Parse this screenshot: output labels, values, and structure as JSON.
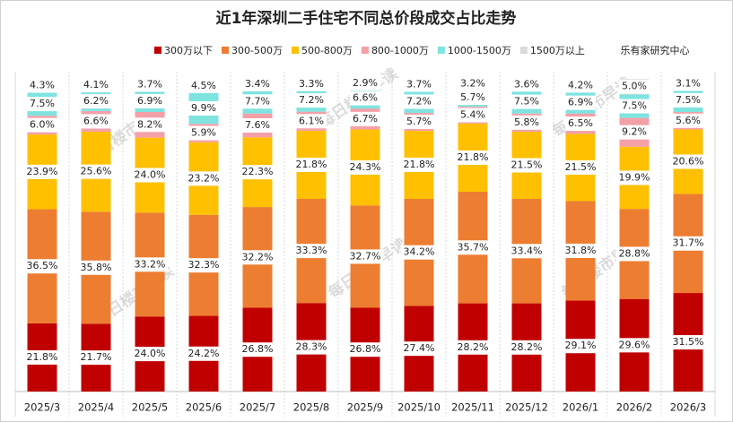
{
  "chart_data": {
    "type": "stacked_bar",
    "title": "近1年深圳二手住宅不同总价段成交占比走势",
    "source": "乐有家研究中心",
    "watermark": "每日楼市早读",
    "categories": [
      "2025/3",
      "2025/4",
      "2025/5",
      "2025/6",
      "2025/7",
      "2025/8",
      "2025/9",
      "2025/10",
      "2025/11",
      "2025/12",
      "2026/1",
      "2026/2",
      "2026/3"
    ],
    "ylim": [
      0,
      100
    ],
    "series": [
      {
        "name": "300万以下",
        "color": "#c00000",
        "values": [
          21.8,
          21.7,
          24.0,
          24.2,
          26.8,
          28.3,
          26.8,
          27.4,
          28.2,
          28.2,
          29.1,
          29.6,
          31.5
        ],
        "value_labels": [
          "21.8%",
          "21.7%",
          "24.0%",
          "24.2%",
          "26.8%",
          "28.3%",
          "26.8%",
          "27.4%",
          "28.2%",
          "28.2%",
          "29.1%",
          "29.6%",
          "31.5%"
        ]
      },
      {
        "name": "300-500万",
        "color": "#ed7d31",
        "values": [
          36.5,
          35.8,
          33.2,
          32.3,
          32.2,
          33.3,
          32.7,
          34.2,
          35.7,
          33.4,
          31.8,
          28.8,
          31.7
        ],
        "value_labels": [
          "36.5%",
          "35.8%",
          "33.2%",
          "32.3%",
          "32.2%",
          "33.3%",
          "32.7%",
          "34.2%",
          "35.7%",
          "33.4%",
          "31.8%",
          "28.8%",
          "31.7%"
        ]
      },
      {
        "name": "500-800万",
        "color": "#ffc000",
        "values": [
          23.9,
          25.6,
          24.0,
          23.2,
          22.3,
          21.8,
          24.3,
          21.8,
          21.8,
          21.5,
          21.5,
          19.9,
          20.6
        ],
        "value_labels": [
          "23.9%",
          "25.6%",
          "24.0%",
          "23.2%",
          "22.3%",
          "21.8%",
          "24.3%",
          "21.8%",
          "21.8%",
          "21.5%",
          "21.5%",
          "19.9%",
          "20.6%"
        ]
      },
      {
        "name": "800-1000万",
        "color": "#f4a0a8",
        "values": [
          6.0,
          6.6,
          8.2,
          5.9,
          7.6,
          6.1,
          6.7,
          5.7,
          5.4,
          5.8,
          6.5,
          9.2,
          5.6
        ],
        "value_labels": [
          "6.0%",
          "6.6%",
          "8.2%",
          "5.9%",
          "7.6%",
          "6.1%",
          "6.7%",
          "5.7%",
          "5.4%",
          "5.8%",
          "6.5%",
          "9.2%",
          "5.6%"
        ]
      },
      {
        "name": "1000-1500万",
        "color": "#7fe3e0",
        "values": [
          7.5,
          6.2,
          6.9,
          9.9,
          7.7,
          7.2,
          6.6,
          7.2,
          5.7,
          7.5,
          6.9,
          7.5,
          7.5
        ],
        "value_labels": [
          "7.5%",
          "6.2%",
          "6.9%",
          "9.9%",
          "7.7%",
          "7.2%",
          "6.6%",
          "7.2%",
          "5.7%",
          "7.5%",
          "6.9%",
          "7.5%",
          "7.5%"
        ]
      },
      {
        "name": "1500万以上",
        "color": "#d9d9d9",
        "values": [
          4.3,
          4.1,
          3.7,
          4.5,
          3.4,
          3.3,
          2.9,
          3.7,
          3.2,
          3.6,
          4.2,
          5.0,
          3.1
        ],
        "value_labels": [
          "4.3%",
          "4.1%",
          "3.7%",
          "4.5%",
          "3.4%",
          "3.3%",
          "2.9%",
          "3.7%",
          "3.2%",
          "3.6%",
          "4.2%",
          "5.0%",
          "3.1%"
        ]
      }
    ]
  }
}
